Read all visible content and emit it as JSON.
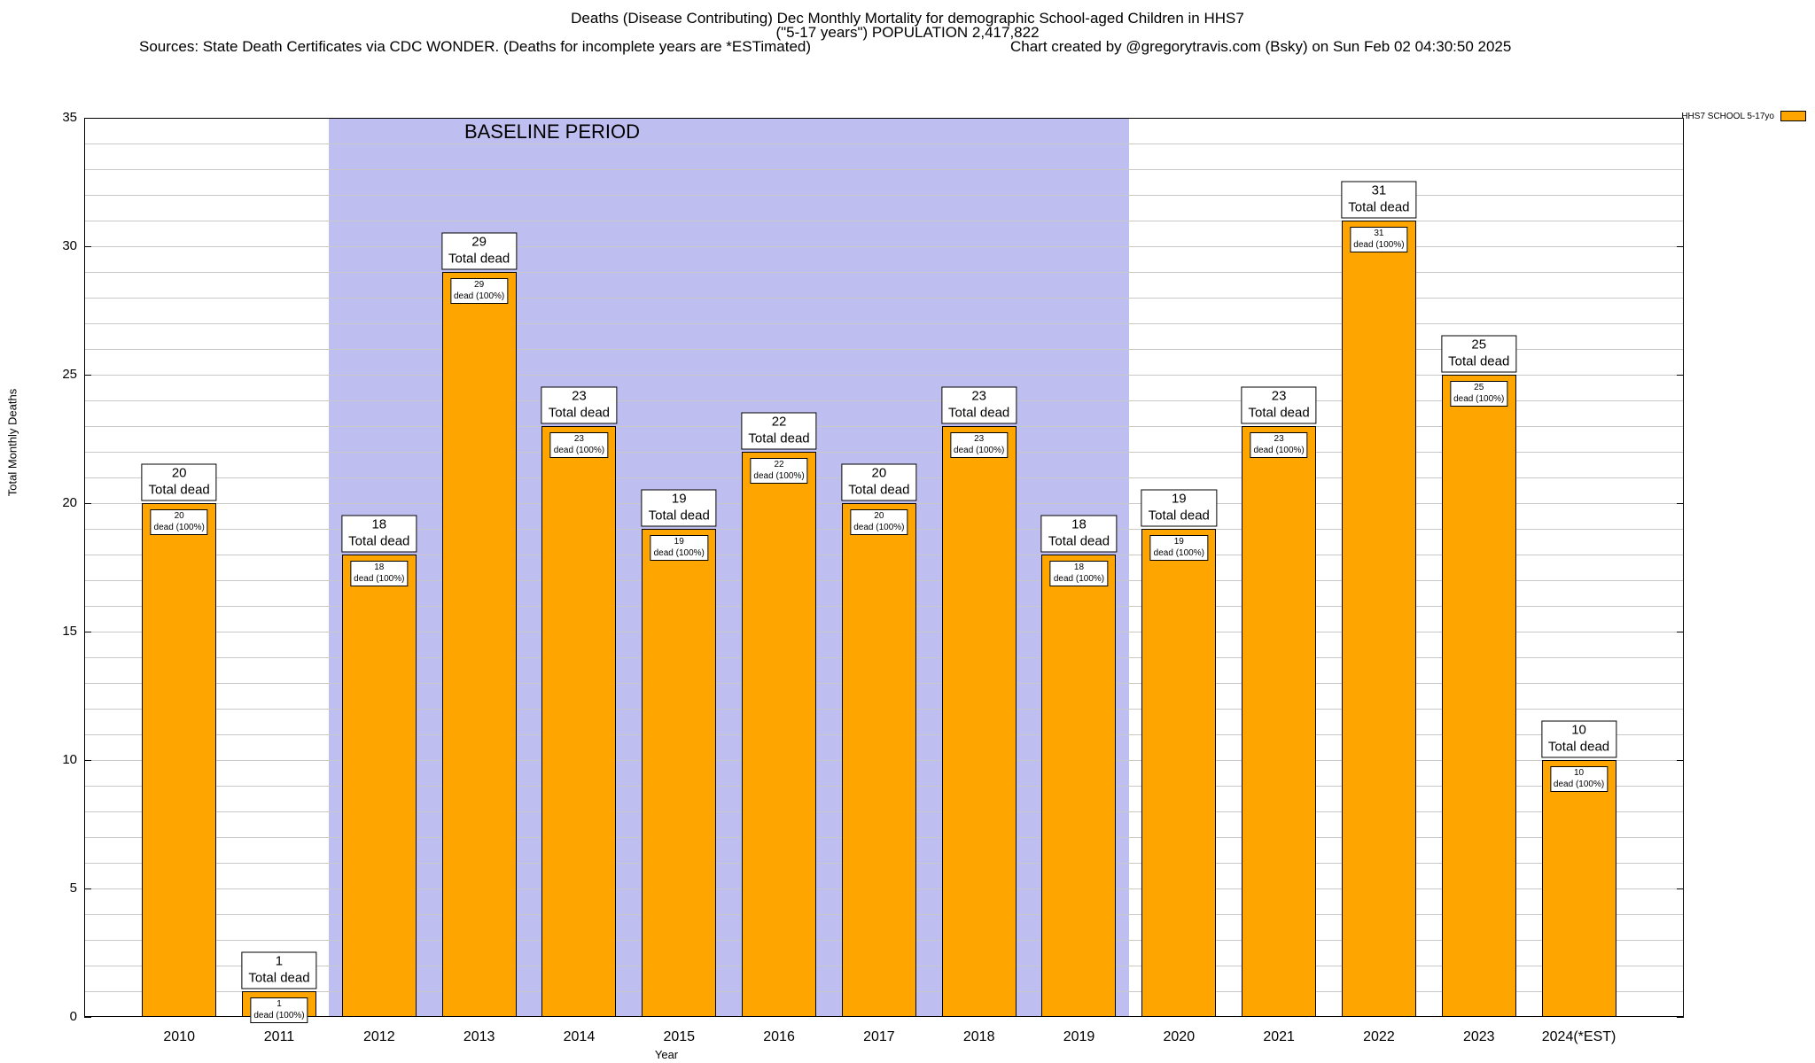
{
  "header": {
    "title_line1": "Deaths (Disease Contributing) Dec Monthly Mortality for demographic School-aged Children in HHS7",
    "title_line2": "(\"5-17 years\") POPULATION 2,417,822",
    "sources": "Sources: State Death Certificates via CDC WONDER. (Deaths for incomplete years are *ESTimated)",
    "credit": "Chart created by @gregorytravis.com (Bsky) on Sun Feb 02 04:30:50 2025"
  },
  "legend": {
    "label": "HHS7 SCHOOL 5-17yo",
    "swatch_color": "#FFA500"
  },
  "chart_data": {
    "type": "bar",
    "title": "Deaths (Disease Contributing) Dec Monthly Mortality for demographic School-aged Children in HHS7",
    "subtitle": "(\"5-17 years\") POPULATION 2,417,822",
    "categories": [
      "2010",
      "2011",
      "2012",
      "2013",
      "2014",
      "2015",
      "2016",
      "2017",
      "2018",
      "2019",
      "2020",
      "2021",
      "2022",
      "2023",
      "2024(*EST)"
    ],
    "values": [
      20,
      1,
      18,
      29,
      23,
      19,
      22,
      20,
      23,
      18,
      19,
      23,
      31,
      25,
      10
    ],
    "bar_total_label": "Total dead",
    "bar_inner_label": "dead (100%)",
    "xlabel": "Year",
    "ylabel": "Total Monthly Deaths",
    "ylim": [
      0,
      35
    ],
    "ytick_step": 5,
    "grid_step": 1,
    "grid": true,
    "legend_position": "top-right",
    "bar_color": "#FFA500",
    "grid_color": "#c8c8c8",
    "baseline": {
      "label": "BASELINE PERIOD",
      "start_category": "2012",
      "end_category": "2019",
      "color": "#bebef0"
    }
  }
}
